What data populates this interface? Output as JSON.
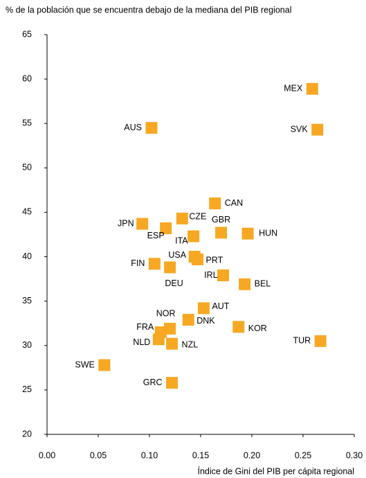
{
  "chart_data": {
    "type": "scatter",
    "title": "% de la población que se encuentra debajo de la mediana del PIB regional",
    "x_label": "Índice de Gini del PIB per cápita regional",
    "labels": [
      "MEX",
      "SVK",
      "AUS",
      "CAN",
      "CZE",
      "JPN",
      "ESP",
      "GBR",
      "HUN",
      "ITA",
      "USA",
      "PRT",
      "FIN",
      "DEU",
      "IRL",
      "BEL",
      "AUT",
      "NOR",
      "DNK",
      "FRA",
      "NLD",
      "NZL",
      "KOR",
      "TUR",
      "SWE",
      "GRC"
    ],
    "x": [
      0.259,
      0.264,
      0.102,
      0.164,
      0.132,
      0.093,
      0.116,
      0.17,
      0.196,
      0.143,
      0.144,
      0.147,
      0.105,
      0.12,
      0.172,
      0.193,
      0.153,
      0.12,
      0.138,
      0.111,
      0.109,
      0.122,
      0.187,
      0.267,
      0.056,
      0.122
    ],
    "values": [
      58.9,
      54.3,
      54.5,
      46.0,
      44.3,
      43.7,
      43.2,
      42.7,
      42.6,
      42.3,
      40.0,
      39.7,
      39.2,
      38.8,
      37.9,
      36.9,
      34.2,
      31.9,
      32.9,
      31.5,
      30.7,
      30.2,
      32.1,
      30.5,
      27.8,
      25.8
    ],
    "color": "#f7a823",
    "xlim": [
      0,
      0.3
    ],
    "xticks": [
      {
        "value": 0,
        "label": "0.00"
      },
      {
        "value": 0.05,
        "label": "0.05"
      },
      {
        "value": 0.1,
        "label": "0.10"
      },
      {
        "value": 0.15,
        "label": "0.15"
      },
      {
        "value": 0.2,
        "label": "0.20"
      },
      {
        "value": 0.25,
        "label": "0.25"
      },
      {
        "value": 0.3,
        "label": "0.30"
      }
    ],
    "ylim": [
      20,
      65
    ],
    "yticks": [
      20,
      25,
      30,
      35,
      40,
      45,
      50,
      55,
      60,
      65
    ],
    "grid": false
  }
}
